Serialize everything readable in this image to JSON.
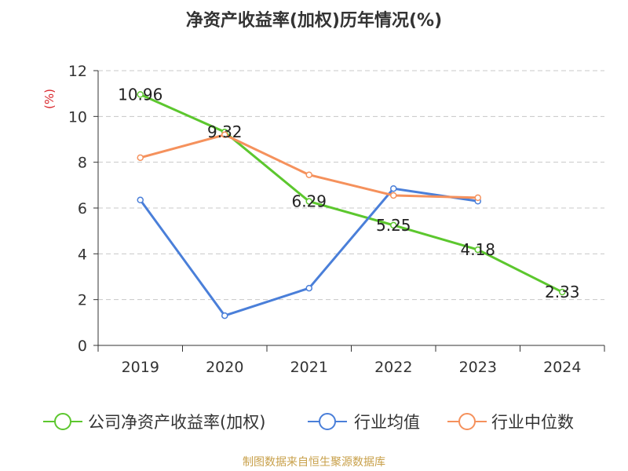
{
  "chart_data": {
    "type": "line",
    "title": "净资产收益率(加权)历年情况(%)",
    "ylabel": "(%)",
    "xlabel": "",
    "categories": [
      "2019",
      "2020",
      "2021",
      "2022",
      "2023",
      "2024"
    ],
    "ylim": [
      0,
      12
    ],
    "yticks": [
      0,
      2,
      4,
      6,
      8,
      10,
      12
    ],
    "grid": true,
    "legend_position": "bottom",
    "series": [
      {
        "name": "公司净资产收益率(加权)",
        "color": "#5cc72e",
        "values": [
          10.96,
          9.32,
          6.29,
          5.25,
          4.18,
          2.33
        ],
        "labels": [
          "10.96",
          "9.32",
          "6.29",
          "5.25",
          "4.18",
          "2.33"
        ]
      },
      {
        "name": "行业均值",
        "color": "#4a7fd9",
        "values": [
          6.35,
          1.3,
          2.5,
          6.85,
          6.3,
          null
        ]
      },
      {
        "name": "行业中位数",
        "color": "#f5915c",
        "values": [
          8.2,
          9.2,
          7.45,
          6.55,
          6.45,
          null
        ]
      }
    ],
    "source": "制图数据来自恒生聚源数据库"
  }
}
